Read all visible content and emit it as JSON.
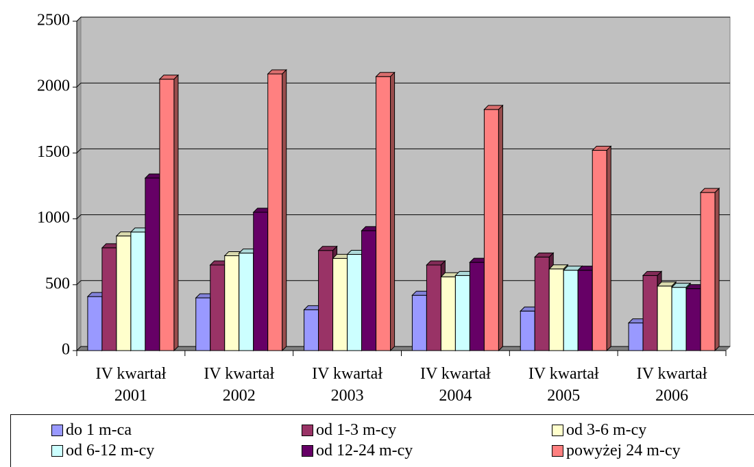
{
  "chart_data": {
    "type": "bar3d",
    "categories": [
      "IV kwartał 2001",
      "IV kwartał 2002",
      "IV kwartał 2003",
      "IV kwartał 2004",
      "IV kwartał 2005",
      "IV kwartał 2006"
    ],
    "series": [
      {
        "name": "do 1 m-ca",
        "color": "#9999ff",
        "values": [
          410,
          400,
          310,
          420,
          300,
          210
        ]
      },
      {
        "name": "od 1-3 m-cy",
        "color": "#993366",
        "values": [
          780,
          650,
          760,
          650,
          710,
          570
        ]
      },
      {
        "name": "od 3-6 m-cy",
        "color": "#ffffcc",
        "values": [
          870,
          720,
          700,
          560,
          620,
          490
        ]
      },
      {
        "name": "od 6-12 m-cy",
        "color": "#ccffff",
        "values": [
          900,
          740,
          730,
          570,
          610,
          480
        ]
      },
      {
        "name": "od 12-24 m-cy",
        "color": "#660066",
        "values": [
          1310,
          1050,
          910,
          670,
          610,
          470
        ]
      },
      {
        "name": "powyżej 24 m-cy",
        "color": "#ff8080",
        "values": [
          2060,
          2100,
          2080,
          1830,
          1520,
          1200
        ]
      }
    ],
    "ylim": [
      0,
      2500
    ],
    "yticks": [
      0,
      500,
      1000,
      1500,
      2000,
      2500
    ],
    "grid": true,
    "wall_color": "#c0c0c0"
  }
}
